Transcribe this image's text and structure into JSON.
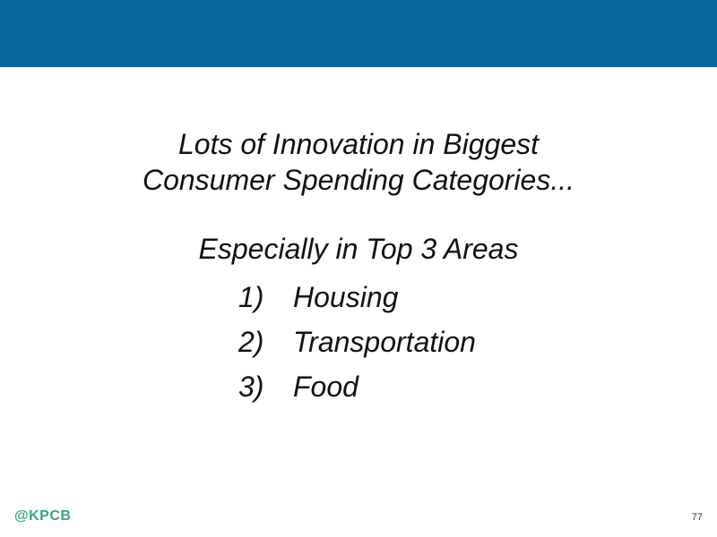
{
  "slide": {
    "title_line1": "Lots of Innovation in Biggest",
    "title_line2": "Consumer Spending Categories...",
    "subtitle": "Especially in Top 3 Areas",
    "areas": [
      {
        "num": "1)",
        "label": "Housing"
      },
      {
        "num": "2)",
        "label": "Transportation"
      },
      {
        "num": "3)",
        "label": "Food"
      }
    ]
  },
  "footer": {
    "brand": "@KPCB",
    "page_number": "77"
  },
  "colors": {
    "header_bar": "#06679c",
    "brand_green": "#3aa57b"
  }
}
